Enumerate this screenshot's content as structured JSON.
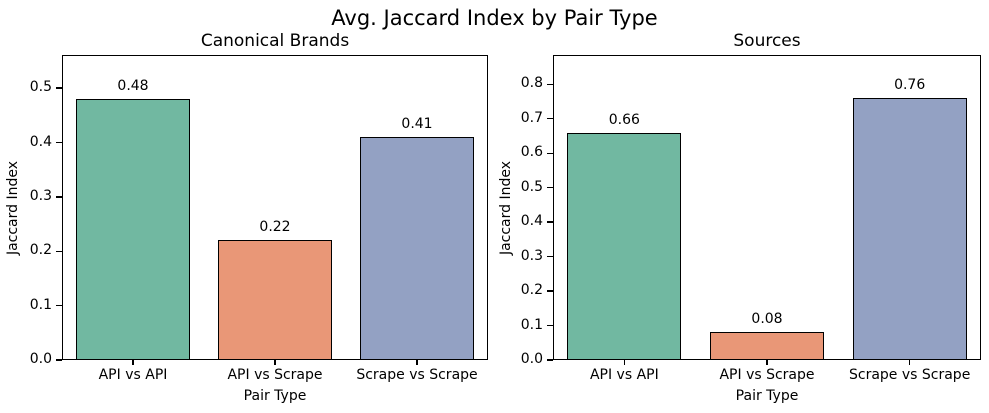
{
  "figure": {
    "title": "Avg. Jaccard Index by Pair Type",
    "background_color": "#ffffff",
    "text_color": "#000000"
  },
  "chart_data": [
    {
      "type": "bar",
      "title": "Canonical Brands",
      "categories": [
        "API vs API",
        "API vs Scrape",
        "Scrape vs Scrape"
      ],
      "values": [
        0.48,
        0.22,
        0.41
      ],
      "bar_labels": [
        "0.48",
        "0.22",
        "0.41"
      ],
      "xlabel": "Pair Type",
      "ylabel": "Jaccard Index",
      "ylim": [
        0,
        0.561
      ],
      "yticks": [
        0,
        0.1,
        0.2,
        0.3,
        0.4,
        0.5
      ],
      "ytick_labels": [
        "0.0",
        "0.1",
        "0.2",
        "0.3",
        "0.4",
        "0.5"
      ],
      "bar_colors": [
        "#71b8a1",
        "#e99777",
        "#93a1c3"
      ],
      "bar_edge_color": "#000000",
      "grid": false,
      "legend": false
    },
    {
      "type": "bar",
      "title": "Sources",
      "categories": [
        "API vs API",
        "API vs Scrape",
        "Scrape vs Scrape"
      ],
      "values": [
        0.66,
        0.08,
        0.76
      ],
      "bar_labels": [
        "0.66",
        "0.08",
        "0.76"
      ],
      "xlabel": "Pair Type",
      "ylabel": "Jaccard Index",
      "ylim": [
        0,
        0.885
      ],
      "yticks": [
        0,
        0.1,
        0.2,
        0.3,
        0.4,
        0.5,
        0.6,
        0.7,
        0.8
      ],
      "ytick_labels": [
        "0.0",
        "0.1",
        "0.2",
        "0.3",
        "0.4",
        "0.5",
        "0.6",
        "0.7",
        "0.8"
      ],
      "bar_colors": [
        "#71b8a1",
        "#e99777",
        "#93a1c3"
      ],
      "bar_edge_color": "#000000",
      "grid": false,
      "legend": false
    }
  ]
}
